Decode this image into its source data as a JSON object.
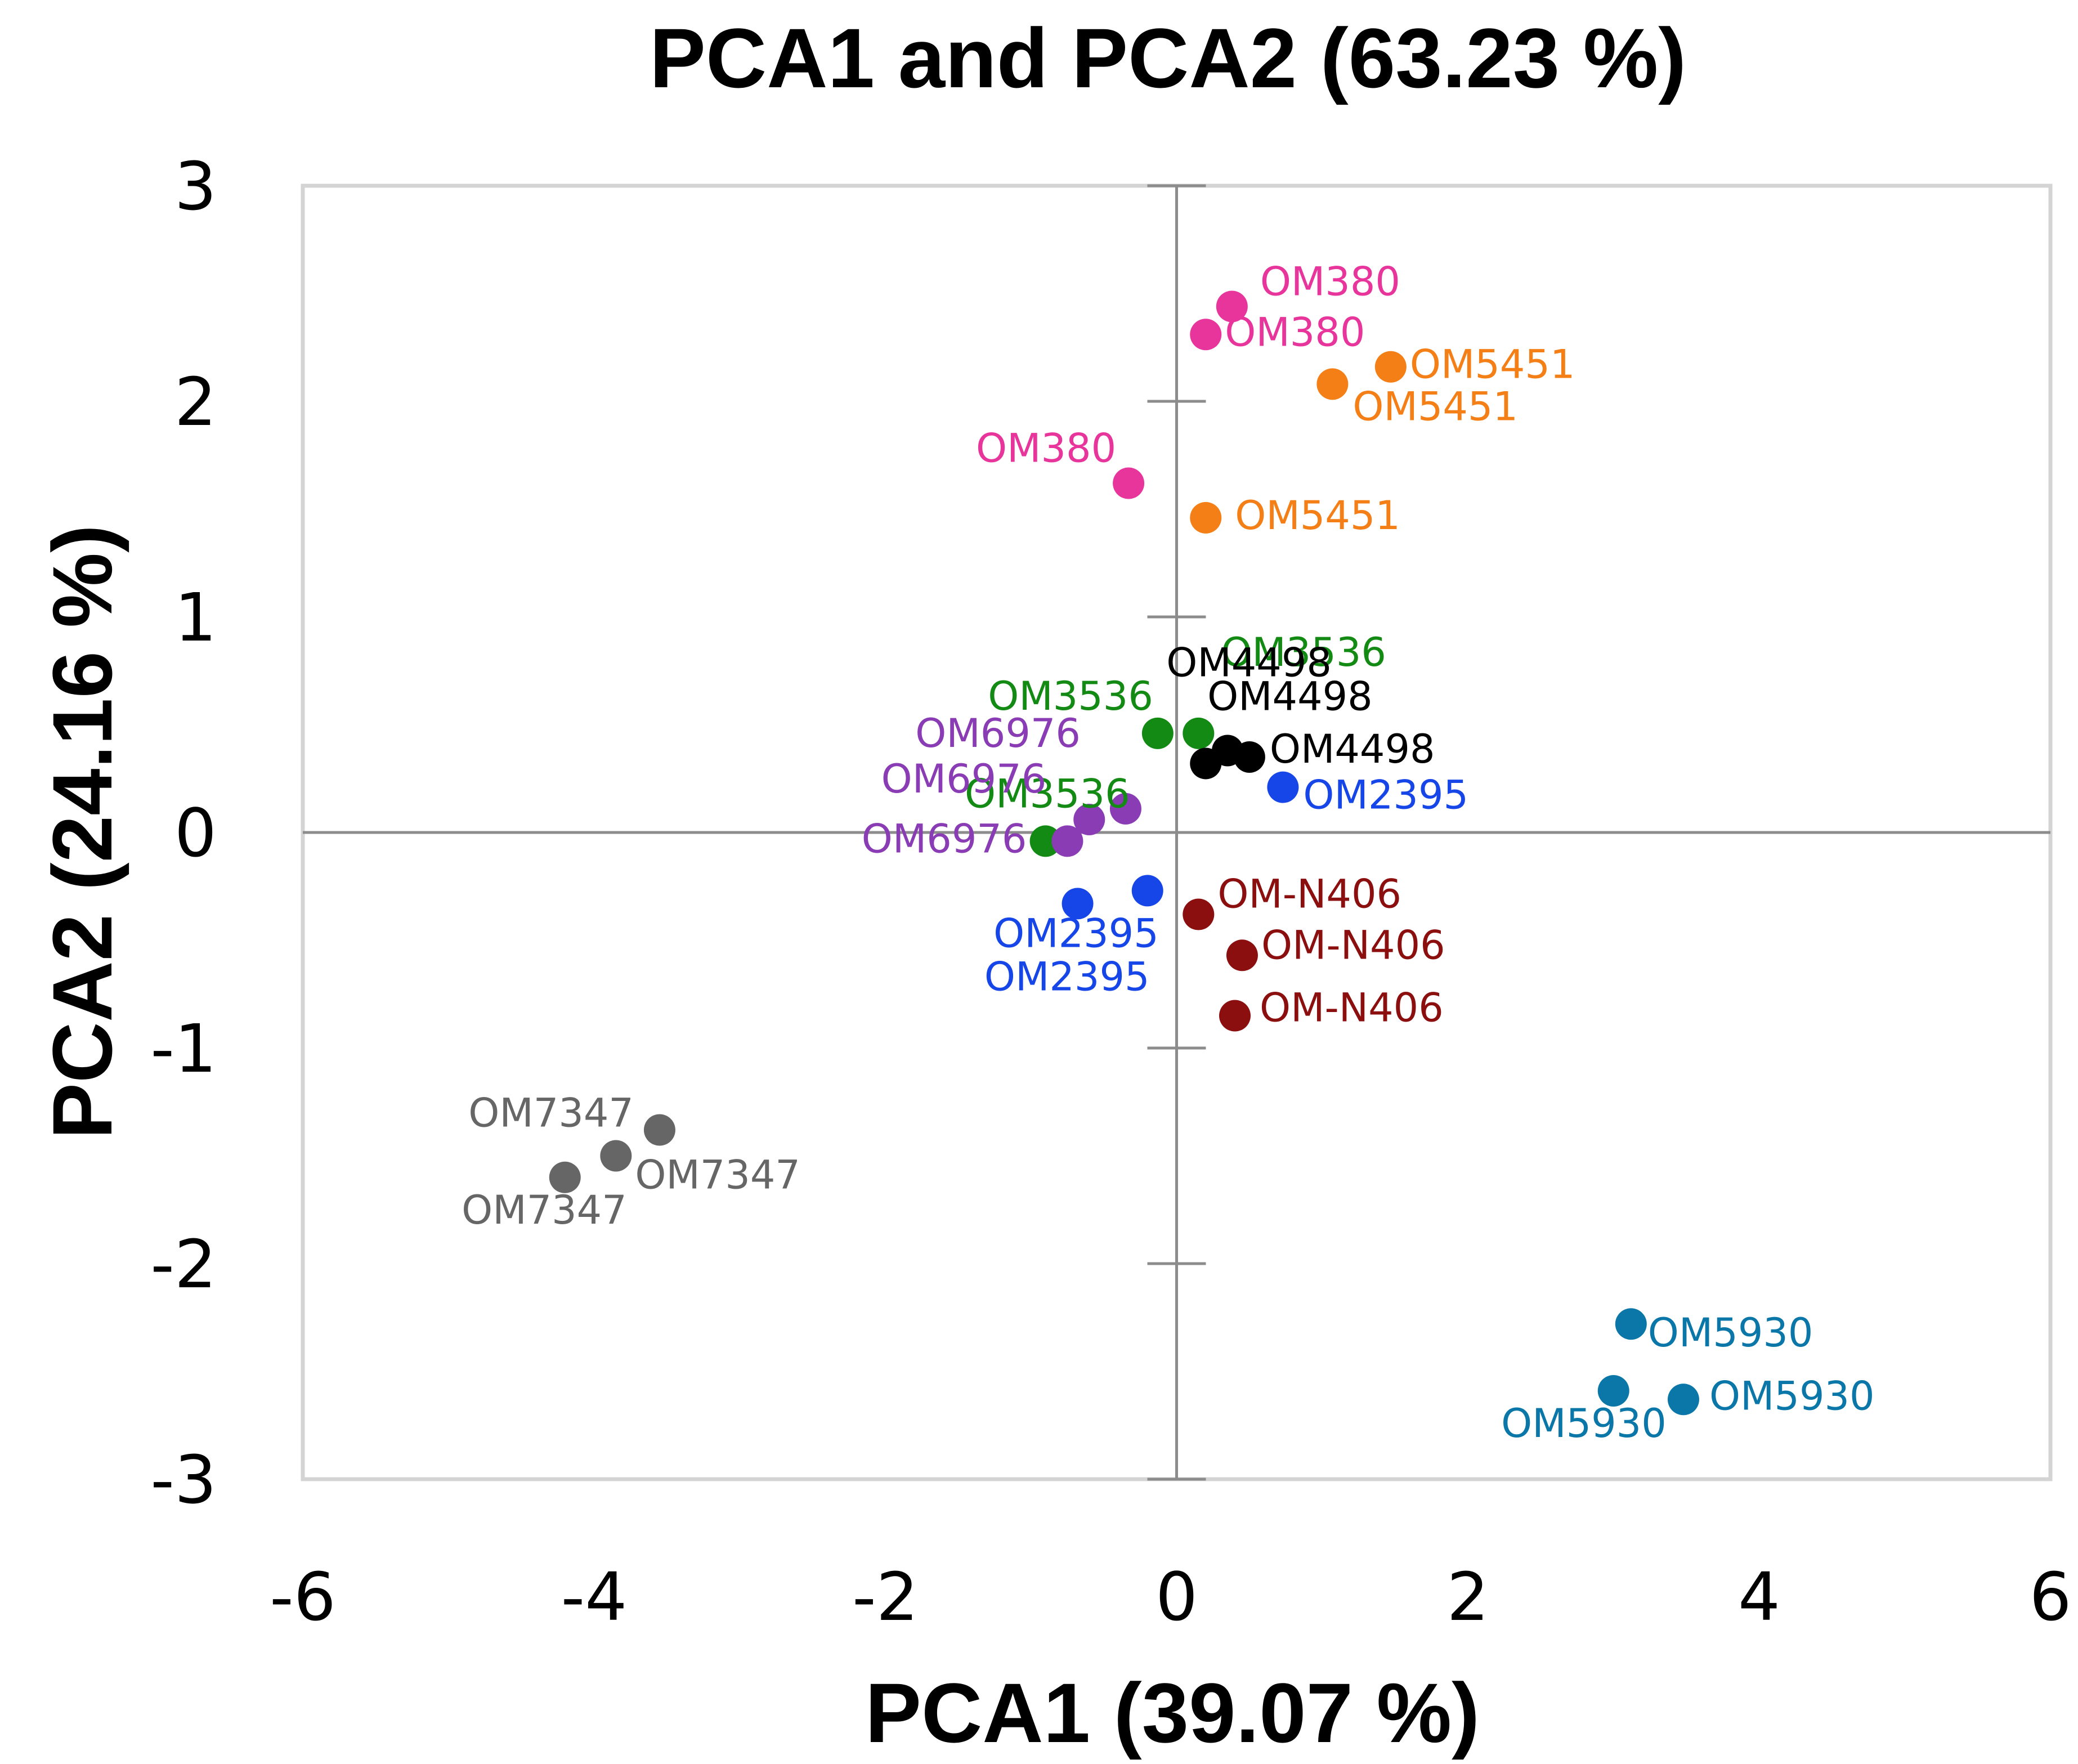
{
  "chart_data": {
    "type": "scatter",
    "title": "PCA1 and PCA2 (63.23 %)",
    "xlabel": "PCA1 (39.07 %)",
    "ylabel": "PCA2 (24.16 %)",
    "xlim": [
      -6,
      6
    ],
    "ylim": [
      -3,
      3
    ],
    "xticks": [
      -6,
      -4,
      -2,
      0,
      2,
      4,
      6
    ],
    "yticks": [
      -3,
      -2,
      -1,
      0,
      1,
      2,
      3
    ],
    "xtick_labels": [
      "-6",
      "-4",
      "-2",
      "0",
      "2",
      "4",
      "6"
    ],
    "ytick_labels": [
      "-3",
      "-2",
      "-1",
      "0",
      "1",
      "2",
      "3"
    ],
    "grid": false,
    "legend": "none",
    "series": [
      {
        "name": "OM380",
        "color": "#e8359c",
        "points": [
          {
            "x": 0.38,
            "y": 2.44,
            "label": "OM380"
          },
          {
            "x": 0.2,
            "y": 2.31,
            "label": "OM380"
          },
          {
            "x": -0.33,
            "y": 1.62,
            "label": "OM380"
          }
        ]
      },
      {
        "name": "OM5451",
        "color": "#f57f17",
        "points": [
          {
            "x": 1.47,
            "y": 2.16,
            "label": "OM5451"
          },
          {
            "x": 1.07,
            "y": 2.08,
            "label": "OM5451"
          },
          {
            "x": 0.2,
            "y": 1.46,
            "label": "OM5451"
          }
        ]
      },
      {
        "name": "OM3536",
        "color": "#138a13",
        "points": [
          {
            "x": 0.15,
            "y": 0.46,
            "label": "OM3536"
          },
          {
            "x": -0.13,
            "y": 0.46,
            "label": "OM3536"
          },
          {
            "x": -0.9,
            "y": -0.04,
            "label": "OM3536"
          }
        ]
      },
      {
        "name": "OM4498",
        "color": "#000000",
        "points": [
          {
            "x": 0.5,
            "y": 0.35,
            "label": "OM4498"
          },
          {
            "x": 0.35,
            "y": 0.38,
            "label": "OM4498"
          },
          {
            "x": 0.2,
            "y": 0.32,
            "label": "OM4498"
          }
        ]
      },
      {
        "name": "OM6976",
        "color": "#8a3cb4",
        "points": [
          {
            "x": -0.35,
            "y": 0.11,
            "label": "OM6976"
          },
          {
            "x": -0.6,
            "y": 0.06,
            "label": "OM6976"
          },
          {
            "x": -0.75,
            "y": -0.04,
            "label": "OM6976"
          }
        ]
      },
      {
        "name": "OM2395",
        "color": "#1746e8",
        "points": [
          {
            "x": 0.73,
            "y": 0.21,
            "label": "OM2395"
          },
          {
            "x": -0.2,
            "y": -0.27,
            "label": "OM2395"
          },
          {
            "x": -0.68,
            "y": -0.33,
            "label": "OM2395"
          }
        ]
      },
      {
        "name": "OM-N406",
        "color": "#8b0f0f",
        "points": [
          {
            "x": 0.15,
            "y": -0.38,
            "label": "OM-N406"
          },
          {
            "x": 0.45,
            "y": -0.57,
            "label": "OM-N406"
          },
          {
            "x": 0.4,
            "y": -0.85,
            "label": "OM-N406"
          }
        ]
      },
      {
        "name": "OM7347",
        "color": "#666666",
        "points": [
          {
            "x": -3.55,
            "y": -1.38,
            "label": "OM7347"
          },
          {
            "x": -3.85,
            "y": -1.5,
            "label": "OM7347"
          },
          {
            "x": -4.2,
            "y": -1.6,
            "label": "OM7347"
          }
        ]
      },
      {
        "name": "OM5930",
        "color": "#0b77a8",
        "points": [
          {
            "x": 3.12,
            "y": -2.28,
            "label": "OM5930"
          },
          {
            "x": 3.48,
            "y": -2.63,
            "label": "OM5930"
          },
          {
            "x": 3.0,
            "y": -2.59,
            "label": "OM5930"
          }
        ]
      }
    ]
  }
}
